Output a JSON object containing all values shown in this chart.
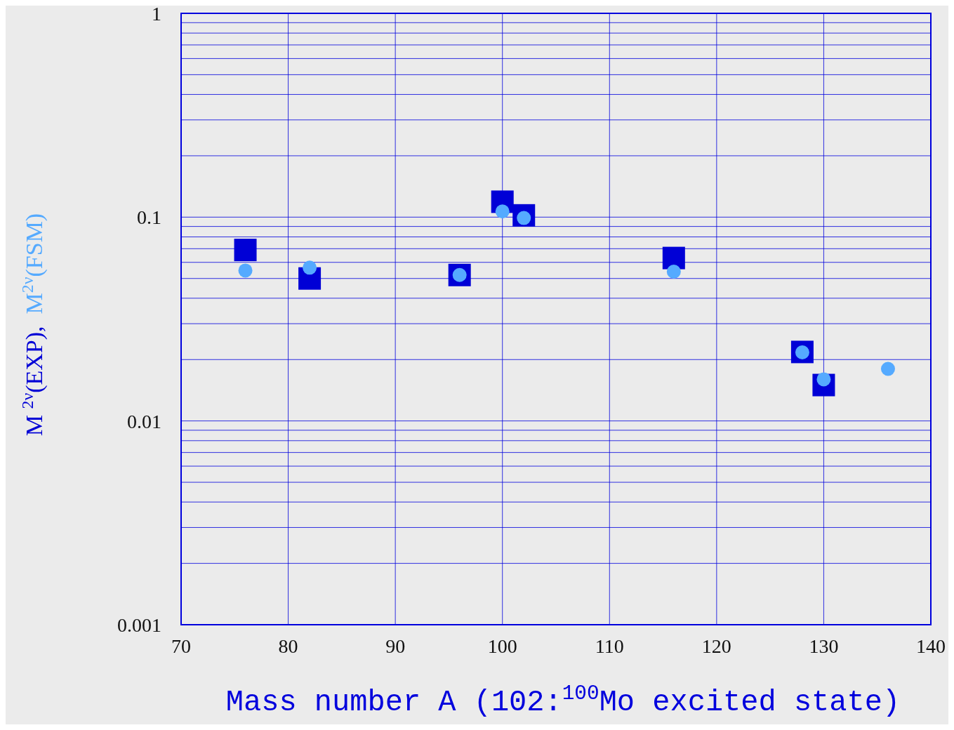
{
  "chart_data": {
    "type": "scatter",
    "xlabel": "Mass number A (102:$^{100}$Mo excited state)",
    "x": [
      76,
      82,
      96,
      100,
      102,
      116,
      128,
      130,
      136
    ],
    "series": [
      {
        "name": "M $^{2ν}$(EXP),",
        "color": "#0000d6",
        "marker": "square",
        "values": [
          0.069,
          0.05,
          0.052,
          0.119,
          0.102,
          0.063,
          0.0218,
          0.015,
          null
        ]
      },
      {
        "name": "M$^{2ν}$(FSM)",
        "color": "#55aaff",
        "marker": "circle",
        "values": [
          0.0547,
          0.0565,
          0.052,
          0.1066,
          0.099,
          0.054,
          0.0217,
          0.016,
          0.018
        ]
      }
    ],
    "xlim": [
      70,
      140
    ],
    "xticks": [
      70,
      80,
      90,
      100,
      110,
      120,
      130,
      140
    ],
    "ylim": [
      0.001,
      1
    ],
    "yticks": [
      0.001,
      0.01,
      0.1,
      1
    ],
    "log": "y",
    "grid": true
  }
}
